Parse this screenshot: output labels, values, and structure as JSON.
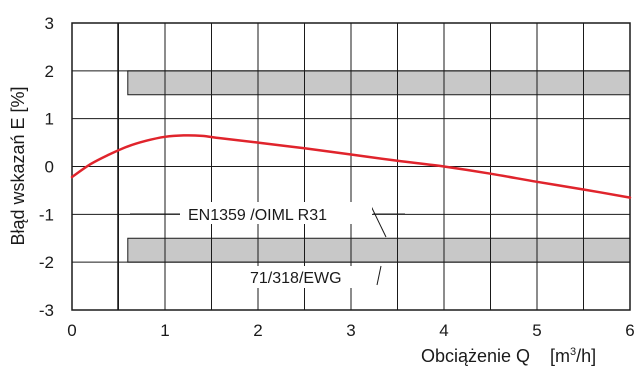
{
  "chart_data": {
    "type": "line",
    "xlabel": "Obciążenie Q",
    "xunit_pre": "[m",
    "xunit_sup": "3",
    "xunit_post": "/h]",
    "ylabel": "Błąd wskazań E [%]",
    "xlim": [
      0,
      6
    ],
    "ylim": [
      -3,
      3
    ],
    "x_ticks": [
      "0",
      "1",
      "2",
      "3",
      "4",
      "5",
      "6"
    ],
    "y_ticks": [
      "3",
      "2",
      "1",
      "0",
      "-1",
      "-2",
      "-3"
    ],
    "grid": true,
    "bands": [
      {
        "x_from": 0.6,
        "x_to": 6,
        "y_from": 1.5,
        "y_to": 2,
        "color": "#c8c8c8"
      },
      {
        "x_from": 0.6,
        "x_to": 6,
        "y_from": -2,
        "y_to": -1.5,
        "color": "#c8c8c8"
      }
    ],
    "series": [
      {
        "color": "#e0242c",
        "x": [
          0,
          0.2,
          0.4,
          0.6,
          0.8,
          1.0,
          1.2,
          1.4,
          1.6,
          2.0,
          2.5,
          3.0,
          3.5,
          4.0,
          4.5,
          5.0,
          5.5,
          6.0
        ],
        "y": [
          -0.22,
          0.05,
          0.25,
          0.42,
          0.54,
          0.62,
          0.65,
          0.64,
          0.59,
          0.5,
          0.38,
          0.25,
          0.12,
          0.0,
          -0.15,
          -0.32,
          -0.48,
          -0.65
        ]
      }
    ],
    "annotations": [
      {
        "text": "EN1359 /OIML R31"
      },
      {
        "text": "71/318/EWG"
      }
    ]
  }
}
